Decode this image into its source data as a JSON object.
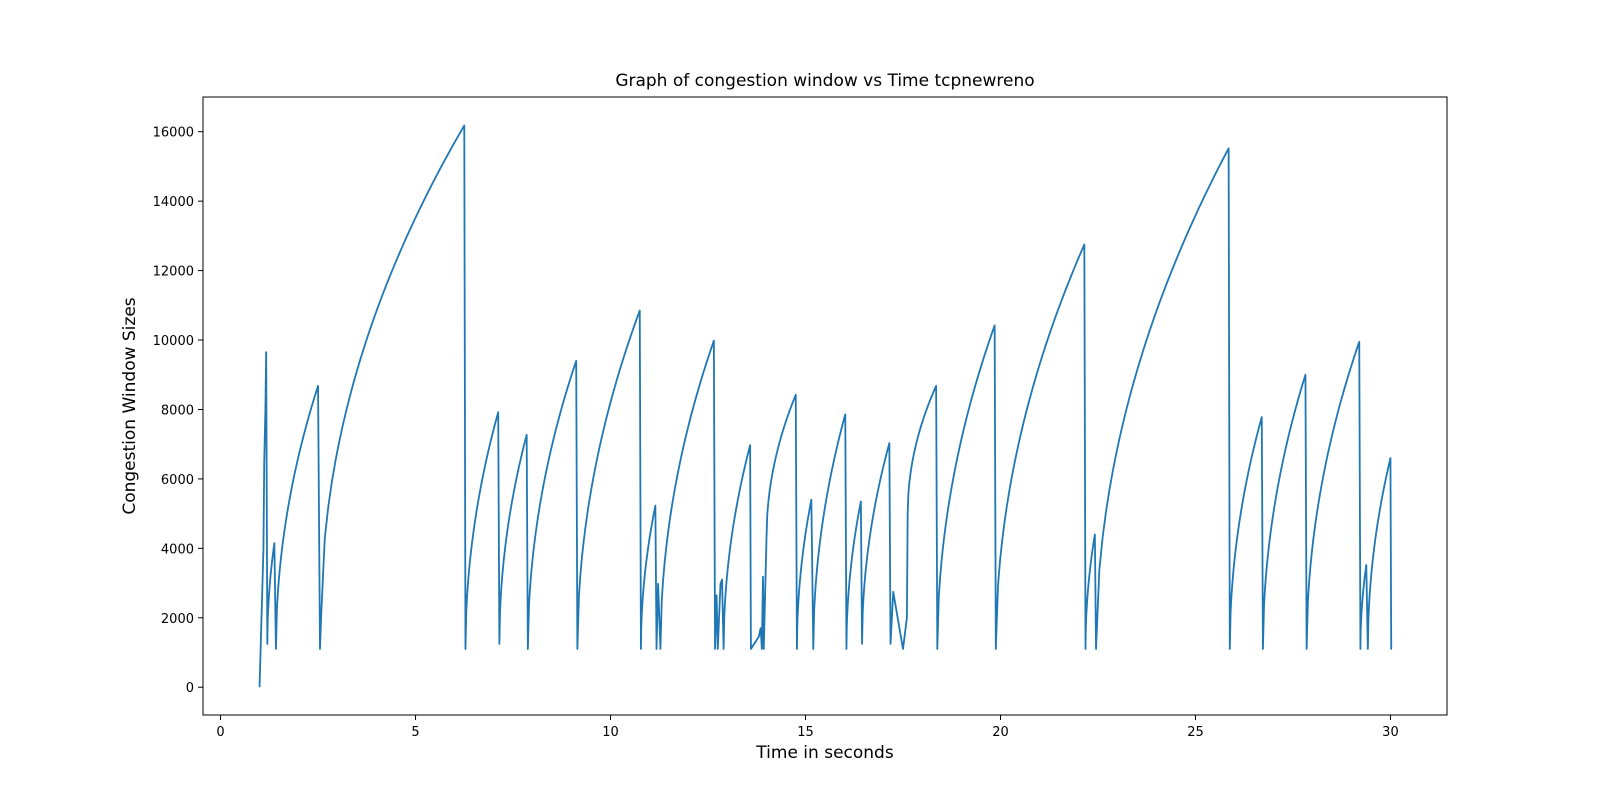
{
  "chart_data": {
    "type": "line",
    "title": "Graph of congestion window vs Time tcpnewreno",
    "xlabel": "Time in seconds",
    "ylabel": "Congestion Window Sizes",
    "xlim": [
      -0.45,
      31.45
    ],
    "ylim": [
      -800,
      17000
    ],
    "xticks": [
      0,
      5,
      10,
      15,
      20,
      25,
      30
    ],
    "yticks": [
      0,
      2000,
      4000,
      6000,
      8000,
      10000,
      12000,
      14000,
      16000
    ],
    "grid": false,
    "legend": "none",
    "color": "#1f77b4",
    "series": [
      {
        "cycles": [
          {
            "start": [
              1.0,
              0
            ],
            "points": [
              [
                1.1,
                4000
              ],
              [
                1.12,
                6500
              ],
              [
                1.15,
                8000
              ],
              [
                1.17,
                9650
              ]
            ]
          },
          {
            "start": [
              1.2,
              1250
            ],
            "end": [
              1.38,
              4150
            ]
          },
          {
            "start": [
              1.42,
              1100
            ],
            "end": [
              2.5,
              8680
            ]
          },
          {
            "start": [
              2.55,
              1100
            ],
            "points": [
              [
                2.58,
                2050
              ]
            ],
            "end": [
              6.25,
              16180
            ]
          },
          {
            "start": [
              6.28,
              1100
            ],
            "end": [
              7.12,
              7920
            ]
          },
          {
            "start": [
              7.15,
              1250
            ],
            "end": [
              7.85,
              7270
            ]
          },
          {
            "start": [
              7.88,
              1100
            ],
            "end": [
              9.12,
              9400
            ]
          },
          {
            "start": [
              9.15,
              1100
            ],
            "end": [
              10.75,
              10850
            ]
          },
          {
            "start": [
              10.78,
              1100
            ],
            "end": [
              11.15,
              5230
            ]
          },
          {
            "start": [
              11.18,
              1100
            ],
            "points": [
              [
                11.22,
                2980
              ]
            ]
          },
          {
            "start": [
              11.28,
              1100
            ],
            "end": [
              12.65,
              9980
            ]
          },
          {
            "start": [
              12.68,
              1100
            ],
            "points": [
              [
                12.72,
                2650
              ]
            ]
          },
          {
            "start": [
              12.75,
              1100
            ],
            "points": [
              [
                12.82,
                2980
              ],
              [
                12.86,
                3100
              ]
            ]
          },
          {
            "start": [
              12.9,
              1100
            ],
            "end": [
              13.58,
              6970
            ]
          },
          {
            "start": [
              13.6,
              1100
            ],
            "points": [
              [
                13.8,
                1450
              ],
              [
                13.85,
                1700
              ]
            ]
          },
          {
            "start": [
              13.88,
              1100
            ],
            "points": [
              [
                13.91,
                3180
              ]
            ]
          },
          {
            "start": [
              13.93,
              1100
            ],
            "points": [
              [
                14.0,
                4300
              ]
            ],
            "end": [
              14.75,
              8420
            ]
          },
          {
            "start": [
              14.78,
              1100
            ],
            "end": [
              15.15,
              5400
            ]
          },
          {
            "start": [
              15.2,
              1100
            ],
            "end": [
              16.02,
              7860
            ]
          },
          {
            "start": [
              16.05,
              1100
            ],
            "end": [
              16.42,
              5350
            ]
          },
          {
            "start": [
              16.45,
              1250
            ],
            "end": [
              17.15,
              7030
            ]
          },
          {
            "start": [
              17.18,
              1250
            ],
            "points": [
              [
                17.25,
                2750
              ],
              [
                17.5,
                1100
              ]
            ]
          },
          {
            "start": [
              17.5,
              1100
            ],
            "points": [
              [
                17.6,
                2000
              ],
              [
                17.62,
                5000
              ]
            ],
            "end": [
              18.35,
              8680
            ]
          },
          {
            "start": [
              18.38,
              1100
            ],
            "end": [
              19.85,
              10420
            ]
          },
          {
            "start": [
              19.88,
              1100
            ],
            "end": [
              22.15,
              12750
            ]
          },
          {
            "start": [
              22.18,
              1100
            ],
            "end": [
              22.42,
              4400
            ]
          },
          {
            "start": [
              22.45,
              1100
            ],
            "end": [
              25.85,
              15520
            ]
          },
          {
            "start": [
              25.88,
              1100
            ],
            "end": [
              26.7,
              7780
            ]
          },
          {
            "start": [
              26.73,
              1100
            ],
            "end": [
              27.82,
              9000
            ]
          },
          {
            "start": [
              27.85,
              1100
            ],
            "end": [
              29.2,
              9950
            ]
          },
          {
            "start": [
              29.23,
              1100
            ],
            "end": [
              29.38,
              3520
            ]
          },
          {
            "start": [
              29.42,
              1100
            ],
            "end": [
              30.0,
              6600
            ]
          },
          {
            "start": [
              30.02,
              1100
            ],
            "points": [
              [
                30.02,
                1400
              ]
            ]
          }
        ]
      }
    ]
  }
}
